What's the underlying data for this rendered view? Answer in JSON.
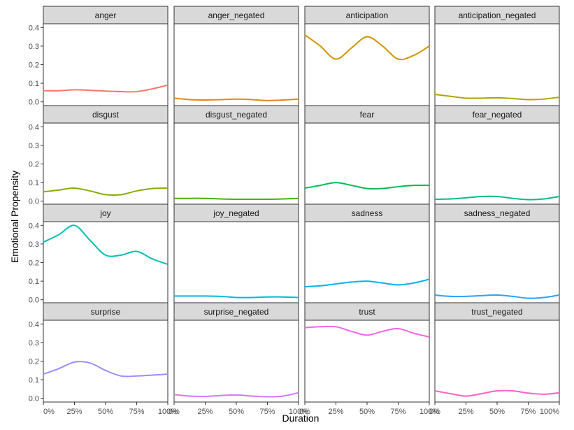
{
  "chart_data": {
    "type": "line",
    "layout": "facet-grid-4x4",
    "xlabel": "Duration",
    "ylabel": "Emotional Propensity",
    "x_ticks": [
      "0%",
      "25%",
      "50%",
      "75%",
      "100%"
    ],
    "y_ticks": [
      "0.0",
      "0.1",
      "0.2",
      "0.3",
      "0.4"
    ],
    "xlim": [
      0,
      100
    ],
    "ylim": [
      -0.02,
      0.42
    ],
    "grid": false,
    "legend": "none",
    "x": [
      0,
      12.5,
      25,
      37.5,
      50,
      62.5,
      75,
      87.5,
      100
    ],
    "series": [
      {
        "name": "anger",
        "color": "#F8766D",
        "values": [
          0.06,
          0.06,
          0.065,
          0.062,
          0.058,
          0.055,
          0.055,
          0.07,
          0.09
        ]
      },
      {
        "name": "anger_negated",
        "color": "#E7851E",
        "values": [
          0.02,
          0.012,
          0.01,
          0.012,
          0.015,
          0.012,
          0.007,
          0.01,
          0.015
        ]
      },
      {
        "name": "anticipation",
        "color": "#D09400",
        "values": [
          0.36,
          0.3,
          0.23,
          0.29,
          0.35,
          0.3,
          0.23,
          0.25,
          0.3
        ]
      },
      {
        "name": "anticipation_negated",
        "color": "#B2A100",
        "values": [
          0.04,
          0.03,
          0.02,
          0.02,
          0.022,
          0.018,
          0.012,
          0.015,
          0.025
        ]
      },
      {
        "name": "disgust",
        "color": "#89AC00",
        "values": [
          0.05,
          0.06,
          0.07,
          0.055,
          0.035,
          0.035,
          0.055,
          0.068,
          0.07
        ]
      },
      {
        "name": "disgust_negated",
        "color": "#45B500",
        "values": [
          0.015,
          0.015,
          0.015,
          0.012,
          0.01,
          0.01,
          0.01,
          0.012,
          0.015
        ]
      },
      {
        "name": "fear",
        "color": "#00BC51",
        "values": [
          0.07,
          0.085,
          0.1,
          0.085,
          0.068,
          0.068,
          0.078,
          0.085,
          0.085
        ]
      },
      {
        "name": "fear_negated",
        "color": "#00C087",
        "values": [
          0.01,
          0.012,
          0.018,
          0.025,
          0.025,
          0.015,
          0.008,
          0.012,
          0.025
        ]
      },
      {
        "name": "joy",
        "color": "#00C0B2",
        "values": [
          0.31,
          0.35,
          0.4,
          0.32,
          0.24,
          0.24,
          0.26,
          0.22,
          0.19
        ]
      },
      {
        "name": "joy_negated",
        "color": "#00BCD6",
        "values": [
          0.02,
          0.02,
          0.02,
          0.018,
          0.012,
          0.012,
          0.015,
          0.015,
          0.012
        ]
      },
      {
        "name": "sadness",
        "color": "#00B3F2",
        "values": [
          0.07,
          0.075,
          0.085,
          0.095,
          0.1,
          0.09,
          0.08,
          0.09,
          0.11
        ]
      },
      {
        "name": "sadness_negated",
        "color": "#29A3FF",
        "values": [
          0.025,
          0.018,
          0.018,
          0.022,
          0.025,
          0.018,
          0.008,
          0.012,
          0.025
        ]
      },
      {
        "name": "surprise",
        "color": "#9C8DFF",
        "values": [
          0.13,
          0.16,
          0.195,
          0.19,
          0.15,
          0.12,
          0.12,
          0.125,
          0.13
        ]
      },
      {
        "name": "surprise_negated",
        "color": "#D277FF",
        "values": [
          0.02,
          0.012,
          0.01,
          0.015,
          0.018,
          0.012,
          0.008,
          0.012,
          0.03
        ]
      },
      {
        "name": "trust",
        "color": "#F166E8",
        "values": [
          0.38,
          0.385,
          0.385,
          0.36,
          0.34,
          0.36,
          0.375,
          0.35,
          0.33
        ]
      },
      {
        "name": "trust_negated",
        "color": "#FF61C7",
        "values": [
          0.04,
          0.025,
          0.012,
          0.025,
          0.04,
          0.04,
          0.028,
          0.022,
          0.03
        ]
      }
    ]
  }
}
